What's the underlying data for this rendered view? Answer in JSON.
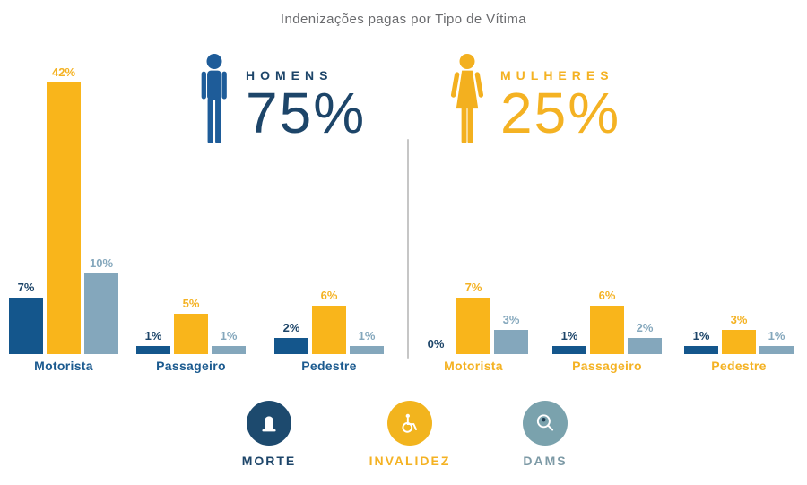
{
  "title": "Indenizações pagas por Tipo de Vítima",
  "genders": [
    {
      "label": "HOMENS",
      "value_text": "75%",
      "icon": "male-icon",
      "icon_color": "#1E5C99",
      "text_color": "#1D4569"
    },
    {
      "label": "MULHERES",
      "value_text": "25%",
      "icon": "female-icon",
      "icon_color": "#F3B01F",
      "text_color": "#F4B223"
    }
  ],
  "legend": [
    {
      "label": "MORTE",
      "icon": "tombstone-icon",
      "circle_color": "#1D4A6E",
      "label_color": "#1D4569"
    },
    {
      "label": "INVALIDEZ",
      "icon": "wheelchair-icon",
      "circle_color": "#F2B41E",
      "label_color": "#F4B223"
    },
    {
      "label": "DAMS",
      "icon": "magnifier-person-icon",
      "circle_color": "#7AA2AD",
      "label_color": "#7D9AA6"
    }
  ],
  "colors": {
    "morte_bar": "#14568C",
    "invalidez_bar": "#F9B51B",
    "dams_bar": "#84A7BC",
    "homens_text": "#1D4569",
    "homens_category_label": "#1B5A8F",
    "mulheres_text": "#F4B223",
    "title_text": "#6A6B6E",
    "divider": "#C6C6C6",
    "value_label_morte": "#1D4569",
    "value_label_invalidez": "#F4B223",
    "value_label_dams": "#84A7BC"
  },
  "chart_data": {
    "type": "bar",
    "title": "Indenizações pagas por Tipo de Vítima",
    "unit": "%",
    "legend_position": "bottom",
    "series_names": [
      "MORTE",
      "INVALIDEZ",
      "DAMS"
    ],
    "groups": [
      {
        "gender": "HOMENS",
        "gender_share": 75,
        "categories": [
          "Motorista",
          "Passageiro",
          "Pedestre"
        ],
        "series": [
          {
            "name": "MORTE",
            "values": [
              7,
              1,
              2
            ]
          },
          {
            "name": "INVALIDEZ",
            "values": [
              42,
              5,
              6
            ]
          },
          {
            "name": "DAMS",
            "values": [
              10,
              1,
              1
            ]
          }
        ]
      },
      {
        "gender": "MULHERES",
        "gender_share": 25,
        "categories": [
          "Motorista",
          "Passageiro",
          "Pedestre"
        ],
        "series": [
          {
            "name": "MORTE",
            "values": [
              0,
              1,
              1
            ]
          },
          {
            "name": "INVALIDEZ",
            "values": [
              7,
              6,
              3
            ]
          },
          {
            "name": "DAMS",
            "values": [
              3,
              2,
              1
            ]
          }
        ]
      }
    ]
  }
}
